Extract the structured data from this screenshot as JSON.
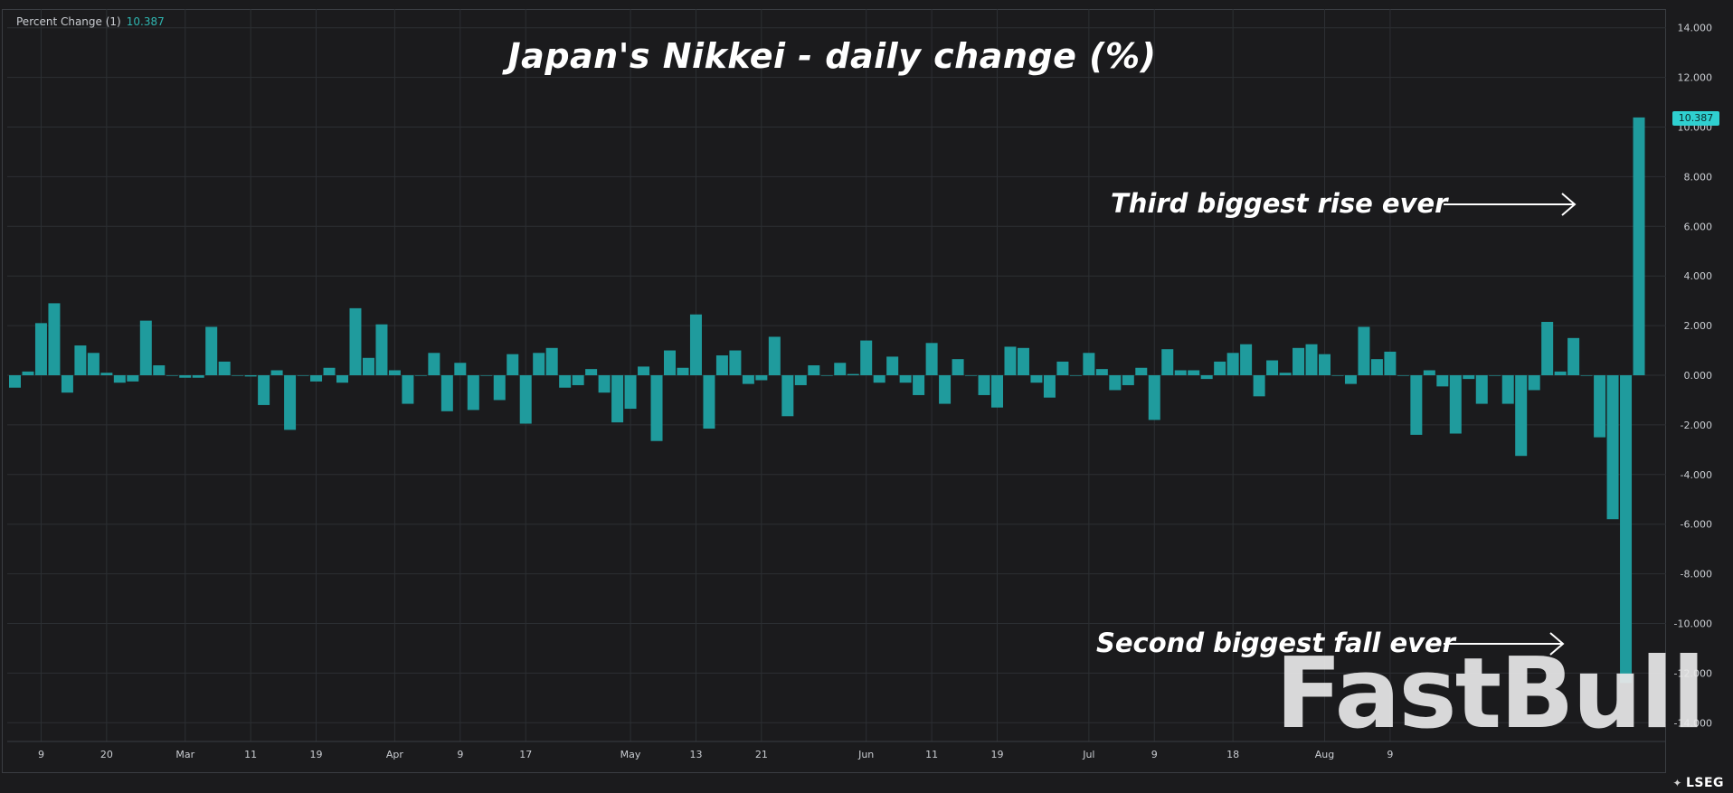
{
  "legend": {
    "label": "Percent Change (1)",
    "value": "10.387"
  },
  "last_badge": "10.387",
  "annotations": {
    "rise": "Third biggest rise ever",
    "fall": "Second biggest fall ever"
  },
  "watermark": "FastBull",
  "brand": "LSEG",
  "colors": {
    "bar": "#1f9b9d",
    "background": "#1b1b1d",
    "grid": "#2c2f33",
    "axis_text": "#c9ccd1"
  },
  "chart_data": {
    "type": "bar",
    "title": "Japan's Nikkei - daily change (%)",
    "xlabel": "",
    "ylabel": "",
    "ylim": [
      -14.8,
      14.8
    ],
    "yticks": [
      14,
      12,
      10,
      8,
      6,
      4,
      2,
      0,
      -2,
      -4,
      -6,
      -8,
      -10,
      -12,
      -14
    ],
    "ytick_labels": [
      "14.000",
      "12.000",
      "10.000",
      "8.000",
      "6.000",
      "4.000",
      "2.000",
      "0.000",
      "-2.000",
      "-4.000",
      "-6.000",
      "-8.000",
      "-10.000",
      "-12.000",
      "-14.000"
    ],
    "x_tick_labels": [
      {
        "label": "9",
        "index": 2
      },
      {
        "label": "20",
        "index": 7
      },
      {
        "label": "Mar",
        "index": 13
      },
      {
        "label": "11",
        "index": 18
      },
      {
        "label": "19",
        "index": 23
      },
      {
        "label": "Apr",
        "index": 29
      },
      {
        "label": "9",
        "index": 34
      },
      {
        "label": "17",
        "index": 39
      },
      {
        "label": "May",
        "index": 47
      },
      {
        "label": "13",
        "index": 52
      },
      {
        "label": "21",
        "index": 57
      },
      {
        "label": "Jun",
        "index": 65
      },
      {
        "label": "11",
        "index": 70
      },
      {
        "label": "19",
        "index": 75
      },
      {
        "label": "Jul",
        "index": 82
      },
      {
        "label": "9",
        "index": 87
      },
      {
        "label": "18",
        "index": 93
      },
      {
        "label": "Aug",
        "index": 100
      },
      {
        "label": "9",
        "index": 105
      }
    ],
    "series": [
      {
        "values": [
          -0.5,
          0.15,
          2.1,
          2.9,
          -0.7,
          1.2,
          0.9,
          0.1,
          -0.3,
          -0.25,
          2.2,
          0.4,
          0.0,
          -0.1,
          -0.1,
          1.95,
          0.55,
          0.0,
          -0.05,
          -1.2,
          0.2,
          -2.2,
          0.0,
          -0.25,
          0.3,
          -0.3,
          2.7,
          0.7,
          2.05,
          0.2,
          -1.15,
          0.0,
          0.9,
          -1.45,
          0.5,
          -1.4,
          0.0,
          -1.0,
          0.85,
          -1.95,
          0.9,
          1.1,
          -0.5,
          -0.4,
          0.25,
          -0.7,
          -1.9,
          -1.35,
          0.35,
          -2.65,
          1.0,
          0.3,
          2.45,
          -2.15,
          0.8,
          1.0,
          -0.35,
          -0.2,
          1.55,
          -1.65,
          -0.4,
          0.4,
          0.0,
          0.5,
          0.05,
          1.4,
          -0.3,
          0.75,
          -0.3,
          -0.8,
          1.3,
          -1.15,
          0.65,
          0.0,
          -0.8,
          -1.3,
          1.15,
          1.1,
          -0.3,
          -0.9,
          0.55,
          0.0,
          0.9,
          0.25,
          -0.6,
          -0.4,
          0.3,
          -1.8,
          1.05,
          0.2,
          0.2,
          -0.15,
          0.55,
          0.9,
          1.25,
          -0.85,
          0.6,
          0.1,
          1.1,
          1.25,
          0.85,
          0.0,
          -0.35,
          1.95,
          0.65,
          0.95,
          0.0,
          -2.4,
          0.2,
          -0.45,
          -2.35,
          -0.15,
          -1.15,
          0.0,
          -1.15,
          -3.25,
          -0.6,
          2.15,
          0.15,
          1.5,
          0.0,
          -2.5,
          -5.8,
          -12.4,
          10.387
        ]
      }
    ]
  }
}
